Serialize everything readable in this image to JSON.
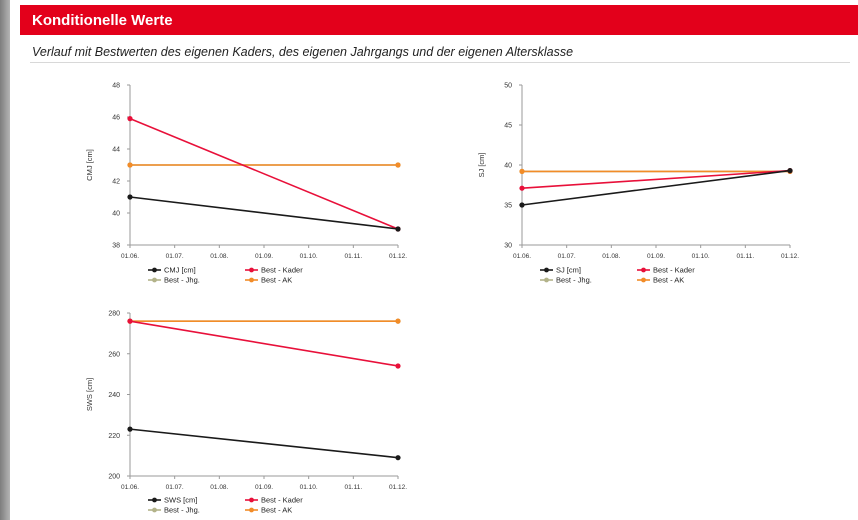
{
  "header": {
    "title": "Konditionelle Werte",
    "bg_color": "#e3001b"
  },
  "subtitle": "Verlauf mit Bestwerten des eigenen Kaders, des eigenen Jahrgangs und der eigenen Altersklasse",
  "chart_data": [
    {
      "type": "line",
      "ylabel": "CMJ [cm]",
      "xlabel": "",
      "ylim": [
        38,
        48
      ],
      "yticks": [
        "38",
        "40",
        "42",
        "44",
        "46",
        "48"
      ],
      "xticks": [
        "01.06.",
        "01.07.",
        "01.08.",
        "01.09.",
        "01.10.",
        "01.11.",
        "01.12."
      ],
      "legend": [
        "CMJ [cm]",
        "Best - Kader",
        "Best - Jhg.",
        "Best - AK"
      ],
      "series": [
        {
          "name": "CMJ [cm]",
          "color": "#1a1a1a",
          "x": [
            "01.06.",
            "01.12."
          ],
          "y": [
            41.0,
            39.0
          ]
        },
        {
          "name": "Best - Kader",
          "color": "#e8103a",
          "x": [
            "01.06.",
            "01.12."
          ],
          "y": [
            45.9,
            39.0
          ]
        },
        {
          "name": "Best - Jhg.",
          "color": "#b3b38a",
          "x": [
            "01.06.",
            "01.12."
          ],
          "y": [
            43.0,
            43.0
          ]
        },
        {
          "name": "Best - AK",
          "color": "#f28c28",
          "x": [
            "01.06.",
            "01.12."
          ],
          "y": [
            43.0,
            43.0
          ]
        }
      ]
    },
    {
      "type": "line",
      "ylabel": "SJ [cm]",
      "xlabel": "",
      "ylim": [
        30,
        50
      ],
      "yticks": [
        "30",
        "35",
        "40",
        "45",
        "50"
      ],
      "xticks": [
        "01.06.",
        "01.07.",
        "01.08.",
        "01.09.",
        "01.10.",
        "01.11.",
        "01.12."
      ],
      "legend": [
        "SJ [cm]",
        "Best - Kader",
        "Best - Jhg.",
        "Best - AK"
      ],
      "series": [
        {
          "name": "SJ [cm]",
          "color": "#1a1a1a",
          "x": [
            "01.06.",
            "01.12."
          ],
          "y": [
            35.0,
            39.3
          ]
        },
        {
          "name": "Best - Kader",
          "color": "#e8103a",
          "x": [
            "01.06.",
            "01.12."
          ],
          "y": [
            37.1,
            39.3
          ]
        },
        {
          "name": "Best - Jhg.",
          "color": "#b3b38a",
          "x": [
            "01.06.",
            "01.12."
          ],
          "y": [
            39.2,
            39.2
          ]
        },
        {
          "name": "Best - AK",
          "color": "#f28c28",
          "x": [
            "01.06.",
            "01.12."
          ],
          "y": [
            39.2,
            39.2
          ]
        }
      ]
    },
    {
      "type": "line",
      "ylabel": "SWS [cm]",
      "xlabel": "",
      "ylim": [
        200,
        280
      ],
      "yticks": [
        "200",
        "220",
        "240",
        "260",
        "280"
      ],
      "xticks": [
        "01.06.",
        "01.07.",
        "01.08.",
        "01.09.",
        "01.10.",
        "01.11.",
        "01.12."
      ],
      "legend": [
        "SWS [cm]",
        "Best - Kader",
        "Best - Jhg.",
        "Best - AK"
      ],
      "series": [
        {
          "name": "SWS [cm]",
          "color": "#1a1a1a",
          "x": [
            "01.06.",
            "01.12."
          ],
          "y": [
            223.0,
            209.0
          ]
        },
        {
          "name": "Best - Kader",
          "color": "#e8103a",
          "x": [
            "01.06.",
            "01.12."
          ],
          "y": [
            276.0,
            254.0
          ]
        },
        {
          "name": "Best - Jhg.",
          "color": "#b3b38a",
          "x": [
            "01.06.",
            "01.12."
          ],
          "y": [
            276.0,
            276.0
          ]
        },
        {
          "name": "Best - AK",
          "color": "#f28c28",
          "x": [
            "01.06.",
            "01.12."
          ],
          "y": [
            276.0,
            276.0
          ]
        }
      ]
    }
  ]
}
